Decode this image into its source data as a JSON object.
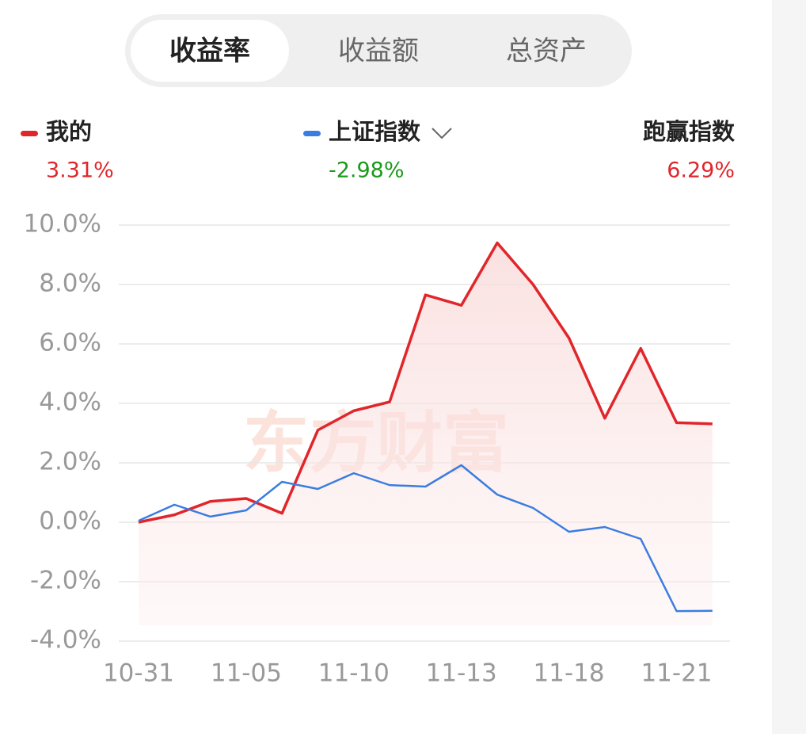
{
  "tabs": [
    "收益率",
    "收益额",
    "总资产"
  ],
  "active_tab": 0,
  "summary": {
    "mine": "3.31%",
    "index": "-2.98%",
    "excess_label": "跑赢指数",
    "excess": "6.29%"
  },
  "watermark": "东方财富",
  "chart_data": {
    "type": "line",
    "categories": [
      "10-31",
      null,
      null,
      "11-05",
      null,
      null,
      "11-10",
      null,
      null,
      "11-13",
      null,
      null,
      "11-18",
      null,
      null,
      "11-21",
      null
    ],
    "series": [
      {
        "name": "我的",
        "color": "#e0262b",
        "values": [
          0.0,
          0.25,
          0.7,
          0.8,
          0.3,
          3.1,
          3.75,
          4.05,
          7.65,
          7.3,
          9.4,
          8.0,
          6.2,
          3.5,
          5.85,
          3.35,
          3.31
        ]
      },
      {
        "name": "上证指数",
        "color": "#3a7de0",
        "values": [
          0.05,
          0.59,
          0.19,
          0.4,
          1.36,
          1.12,
          1.65,
          1.25,
          1.2,
          1.92,
          0.93,
          0.48,
          -0.32,
          -0.16,
          -0.56,
          -2.99,
          -2.98
        ]
      }
    ],
    "ylim": [
      -4,
      10
    ],
    "yticks": [
      {
        "value": 10,
        "label": "10.0%"
      },
      {
        "value": 8,
        "label": "8.0%"
      },
      {
        "value": 6,
        "label": "6.0%"
      },
      {
        "value": 4,
        "label": "4.0%"
      },
      {
        "value": 2,
        "label": "2.0%"
      },
      {
        "value": 0,
        "label": "0.0%"
      },
      {
        "value": -2,
        "label": "-2.0%"
      },
      {
        "value": -4,
        "label": "-4.0%"
      }
    ],
    "grid": true
  }
}
